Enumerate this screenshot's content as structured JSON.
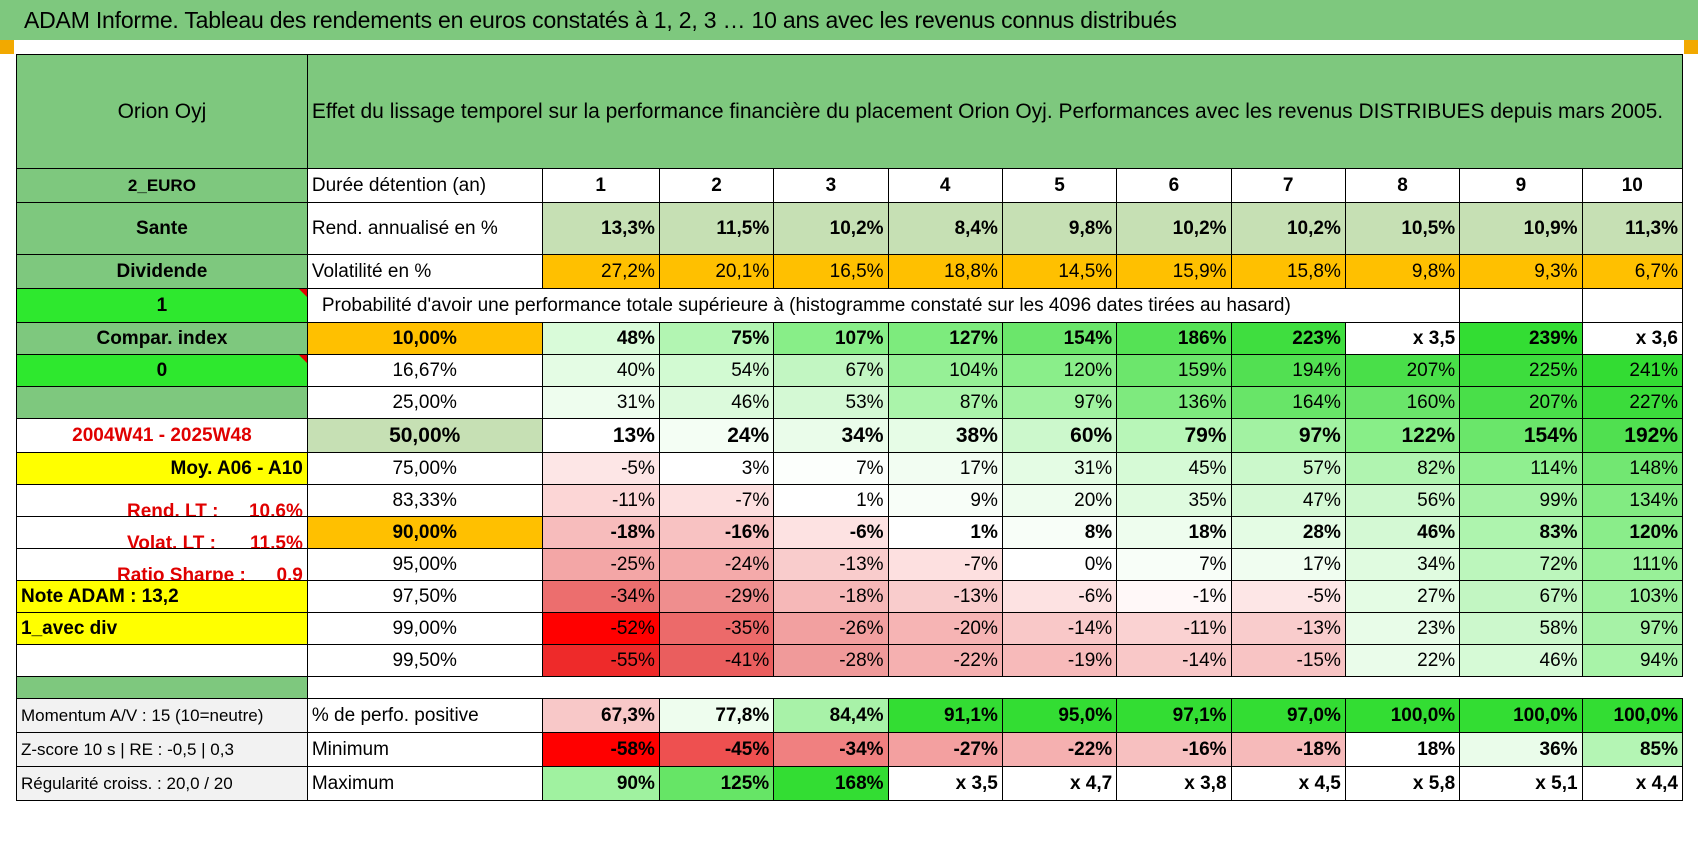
{
  "title": "ADAM Informe. Tableau des rendements en euros constatés à 1, 2, 3 … 10 ans avec les revenus connus distribués",
  "fund": "Orion Oyj",
  "header_text": "Effet du lissage temporel sur la performance financière du placement Orion Oyj. Performances avec les revenus DISTRIBUES depuis mars 2005.",
  "left": {
    "currency": "2_EURO",
    "sector": "Sante",
    "type": "Dividende",
    "flag1": "1",
    "compar": "Compar. index",
    "flag0": "0",
    "period": "2004W41 - 2025W48",
    "moy": "Moy. A06 - A10",
    "rend_lt_label": "Rend. LT :",
    "rend_lt_value": "10,6%",
    "volat_lt_label": "Volat. LT :",
    "volat_lt_value": "11,5%",
    "sharpe_label": "Ratio Sharpe :",
    "sharpe_value": "0,9",
    "note": "Note ADAM : 13,2",
    "avec_div": "1_avec div",
    "momentum": "Momentum A/V : 15 (10=neutre)",
    "zscore": "Z-score 10 s | RE : -0,5 | 0,3",
    "regularite": "Régularité croiss. : 20,0 / 20"
  },
  "row_labels": {
    "duree": "Durée détention (an)",
    "rend": "Rend. annualisé en %",
    "vol": "Volatilité en %",
    "proba": "Probabilité d'avoir une performance totale supérieure à (histogramme constaté sur les 4096 dates tirées au hasard)",
    "pct_pos": "% de perfo. positive",
    "min": "Minimum",
    "max": "Maximum"
  },
  "years": [
    "1",
    "2",
    "3",
    "4",
    "5",
    "6",
    "7",
    "8",
    "9",
    "10"
  ],
  "rend": [
    "13,3%",
    "11,5%",
    "10,2%",
    "8,4%",
    "9,8%",
    "10,2%",
    "10,2%",
    "10,5%",
    "10,9%",
    "11,3%"
  ],
  "vol": [
    "27,2%",
    "20,1%",
    "16,5%",
    "18,8%",
    "14,5%",
    "15,9%",
    "15,8%",
    "9,8%",
    "9,3%",
    "6,7%"
  ],
  "colors": {
    "rend": [
      "#c6e0b4",
      "#c6e0b4",
      "#c6e0b4",
      "#c6e0b4",
      "#c6e0b4",
      "#c6e0b4",
      "#c6e0b4",
      "#c6e0b4",
      "#c6e0b4",
      "#c6e0b4"
    ],
    "vol": [
      "#ffc000",
      "#ffc000",
      "#ffc000",
      "#ffc000",
      "#ffc000",
      "#ffc000",
      "#ffc000",
      "#ffc000",
      "#ffc000",
      "#ffc000"
    ]
  },
  "pct_rows": [
    {
      "pct": "10,00%",
      "cls": "o",
      "bold": true,
      "values": [
        "48%",
        "75%",
        "107%",
        "127%",
        "154%",
        "186%",
        "223%",
        "x 3,5",
        "239%",
        "x 3,6"
      ],
      "colors": [
        "#d9fbd9",
        "#b2f5b2",
        "#88ee88",
        "#7deb7d",
        "#6be66b",
        "#55e255",
        "#3fde3f",
        "#ffffff",
        "#33dd33",
        "#ffffff"
      ]
    },
    {
      "pct": "16,67%",
      "cls": "w",
      "bold": false,
      "values": [
        "40%",
        "54%",
        "67%",
        "104%",
        "120%",
        "159%",
        "194%",
        "207%",
        "225%",
        "241%"
      ],
      "colors": [
        "#e4fce4",
        "#d2fad2",
        "#c2f6c2",
        "#96f096",
        "#8aee8a",
        "#6ce66c",
        "#52e052",
        "#49df49",
        "#3ddd3d",
        "#33dc33"
      ]
    },
    {
      "pct": "25,00%",
      "cls": "w",
      "bold": false,
      "values": [
        "31%",
        "46%",
        "53%",
        "87%",
        "97%",
        "136%",
        "164%",
        "160%",
        "207%",
        "227%"
      ],
      "colors": [
        "#eefdee",
        "#dcfadc",
        "#d4f9d4",
        "#aaf4aa",
        "#a0f2a0",
        "#7eea7e",
        "#68e568",
        "#6ae56a",
        "#49df49",
        "#3bdc3b"
      ]
    },
    {
      "pct": "50,00%",
      "cls": "lg",
      "bold": true,
      "big": true,
      "values": [
        "13%",
        "24%",
        "34%",
        "38%",
        "60%",
        "79%",
        "97%",
        "122%",
        "154%",
        "192%"
      ],
      "colors": [
        "#ffffff",
        "#f4fef4",
        "#eafcea",
        "#e6fce6",
        "#ccf8cc",
        "#b8f6b8",
        "#a2f2a2",
        "#88ee88",
        "#6ae66a",
        "#50e050"
      ]
    },
    {
      "pct": "75,00%",
      "cls": "w",
      "bold": false,
      "values": [
        "-5%",
        "3%",
        "7%",
        "17%",
        "31%",
        "45%",
        "57%",
        "82%",
        "114%",
        "148%"
      ],
      "colors": [
        "#fde6e6",
        "#ffffff",
        "#fcfffc",
        "#f2fdf2",
        "#e4fce4",
        "#d6fad6",
        "#cbf8cb",
        "#b0f4b0",
        "#90ef90",
        "#72e772"
      ]
    },
    {
      "pct": "83,33%",
      "cls": "w",
      "bold": false,
      "values": [
        "-11%",
        "-7%",
        "1%",
        "9%",
        "20%",
        "35%",
        "47%",
        "56%",
        "99%",
        "134%"
      ],
      "colors": [
        "#fcd6d6",
        "#fde0e0",
        "#ffffff",
        "#f8fef8",
        "#eefdee",
        "#dffbdf",
        "#d4f9d4",
        "#ccf8cc",
        "#a4f2a4",
        "#82eb82"
      ]
    },
    {
      "pct": "90,00%",
      "cls": "o",
      "bold": true,
      "values": [
        "-18%",
        "-16%",
        "-6%",
        "1%",
        "8%",
        "18%",
        "28%",
        "46%",
        "83%",
        "120%"
      ],
      "colors": [
        "#f7bcbc",
        "#f8c2c2",
        "#fde2e2",
        "#ffffff",
        "#f8fef8",
        "#eefdee",
        "#e4fce4",
        "#d4f9d4",
        "#aef4ae",
        "#8aed8a"
      ]
    },
    {
      "pct": "95,00%",
      "cls": "w",
      "bold": false,
      "values": [
        "-25%",
        "-24%",
        "-13%",
        "-7%",
        "0%",
        "7%",
        "17%",
        "34%",
        "72%",
        "111%"
      ],
      "colors": [
        "#f3a6a6",
        "#f4aaaa",
        "#f9cccc",
        "#fde0e0",
        "#ffffff",
        "#f8fef8",
        "#f0fdf0",
        "#e0fbe0",
        "#bcf6bc",
        "#98f098"
      ]
    },
    {
      "pct": "97,50%",
      "cls": "w",
      "bold": false,
      "values": [
        "-34%",
        "-29%",
        "-18%",
        "-13%",
        "-6%",
        "-1%",
        "-5%",
        "27%",
        "67%",
        "103%"
      ],
      "colors": [
        "#ec6e6e",
        "#ef8e8e",
        "#f6b8b8",
        "#f9cccc",
        "#fde2e2",
        "#fff8f8",
        "#fde6e6",
        "#e4fce4",
        "#c2f6c2",
        "#9ef19e"
      ]
    },
    {
      "pct": "99,00%",
      "cls": "w",
      "bold": false,
      "values": [
        "-52%",
        "-35%",
        "-26%",
        "-20%",
        "-14%",
        "-11%",
        "-13%",
        "23%",
        "58%",
        "97%"
      ],
      "colors": [
        "#ff0000",
        "#ec6a6a",
        "#f2a0a0",
        "#f6b4b4",
        "#f9c8c8",
        "#fad2d2",
        "#f9cccc",
        "#e8fce8",
        "#ccf8cc",
        "#a6f2a6"
      ]
    },
    {
      "pct": "99,50%",
      "cls": "w",
      "bold": false,
      "values": [
        "-55%",
        "-41%",
        "-28%",
        "-22%",
        "-19%",
        "-14%",
        "-15%",
        "22%",
        "46%",
        "94%"
      ],
      "colors": [
        "#ee2a2a",
        "#ea5e5e",
        "#f09a9a",
        "#f5b0b0",
        "#f7baba",
        "#f9c8c8",
        "#f8c4c4",
        "#eafcea",
        "#d6fad6",
        "#a8f3a8"
      ]
    }
  ],
  "pct_pos": [
    "67,3%",
    "77,8%",
    "84,4%",
    "91,1%",
    "95,0%",
    "97,1%",
    "97,0%",
    "100,0%",
    "100,0%",
    "100,0%"
  ],
  "pct_pos_colors": [
    "#f8c8c8",
    "#eefdee",
    "#a8f2a8",
    "#33dd33",
    "#33dd33",
    "#33dd33",
    "#33dd33",
    "#33dd33",
    "#33dd33",
    "#33dd33"
  ],
  "min": [
    "-58%",
    "-45%",
    "-34%",
    "-27%",
    "-22%",
    "-16%",
    "-18%",
    "18%",
    "36%",
    "85%"
  ],
  "min_colors": [
    "#ff0000",
    "#ee5050",
    "#f08080",
    "#f3a0a0",
    "#f5b0b0",
    "#f7c0c0",
    "#f6baba",
    "#ffffff",
    "#eafcea",
    "#b4f5b4"
  ],
  "max": [
    "90%",
    "125%",
    "168%",
    "x 3,5",
    "x 4,7",
    "x 3,8",
    "x 4,5",
    "x 5,8",
    "x 5,1",
    "x 4,4"
  ],
  "max_colors": [
    "#a0f2a0",
    "#66e566",
    "#33dd33",
    "#ffffff",
    "#ffffff",
    "#ffffff",
    "#ffffff",
    "#ffffff",
    "#ffffff",
    "#ffffff"
  ]
}
